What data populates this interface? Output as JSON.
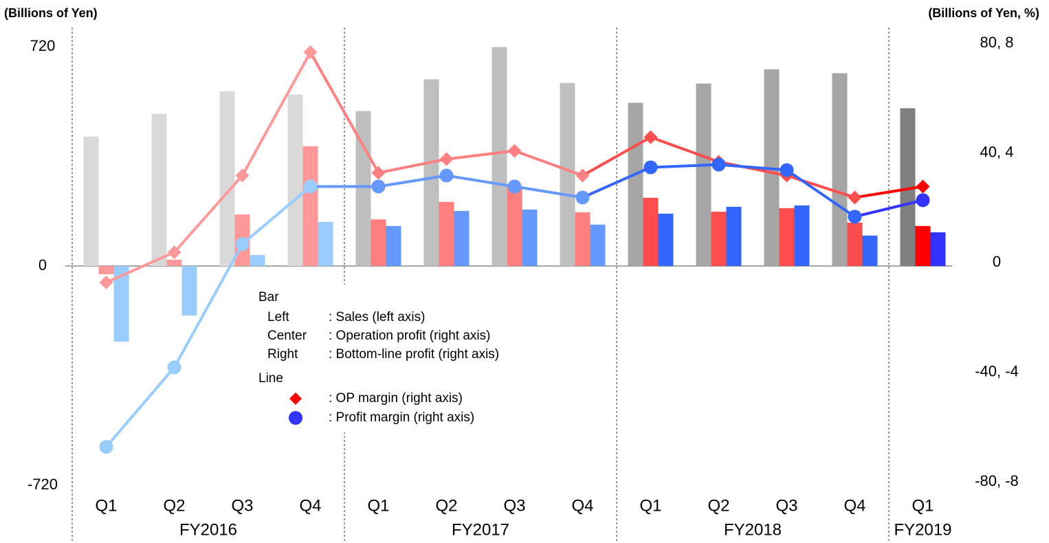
{
  "chart_data": {
    "type": "combo",
    "y_axis_label": "(Billions of Yen)",
    "y2_axis_label": "(Billions of Yen, %)",
    "groups": [
      {
        "name": "FY2016",
        "quarters": [
          "Q1",
          "Q2",
          "Q3",
          "Q4"
        ]
      },
      {
        "name": "FY2017",
        "quarters": [
          "Q1",
          "Q2",
          "Q3",
          "Q4"
        ]
      },
      {
        "name": "FY2018",
        "quarters": [
          "Q1",
          "Q2",
          "Q3",
          "Q4"
        ]
      },
      {
        "name": "FY2019",
        "quarters": [
          "Q1"
        ]
      }
    ],
    "ylim": [
      -720,
      720
    ],
    "yticks": [
      720,
      0,
      -720
    ],
    "y2lim": [
      -80,
      80
    ],
    "y2ticks": [
      {
        "value": 80,
        "label": "80, 8"
      },
      {
        "value": 40,
        "label": "40, 4"
      },
      0,
      {
        "value": -40,
        "label": "-40, -4"
      },
      {
        "value": -80,
        "label": "-80, -8"
      }
    ],
    "y3lim": [
      -8,
      8
    ],
    "legend_bar_title": "Bar",
    "legend_line_title": "Line",
    "series": [
      {
        "name": ": Sales (left axis)",
        "legend_position": "Left",
        "kind": "bar",
        "axis": "y",
        "colors": [
          "#d9d9d9",
          "#bfbfbf",
          "#a6a6a6",
          "#7f7f7f"
        ],
        "values": [
          425,
          500,
          574,
          563,
          509,
          613,
          719,
          601,
          536,
          599,
          646,
          633,
          518
        ]
      },
      {
        "name": ": Operation profit (right axis)",
        "legend_position": "Center",
        "kind": "bar",
        "axis": "y2",
        "colors": [
          "#ff9999",
          "#ff7f7f",
          "#ff4d4d",
          "#ff0000"
        ],
        "values": [
          -3,
          2.3,
          18.8,
          43.7,
          17,
          23.4,
          29.1,
          19.6,
          24.9,
          19.8,
          21.1,
          15.8,
          14.6
        ]
      },
      {
        "name": ": Bottom-line profit (right axis)",
        "legend_position": "Right",
        "kind": "bar",
        "axis": "y2",
        "colors": [
          "#99ccff",
          "#6699ff",
          "#3366ff",
          "#3333ff"
        ],
        "values": [
          -27.6,
          -18.1,
          4,
          16.1,
          14.6,
          20.1,
          20.6,
          15.1,
          19.1,
          21.6,
          22.1,
          11.1,
          12.3
        ]
      },
      {
        "name": ": OP margin (right axis)",
        "kind": "line",
        "marker": "diamond",
        "axis": "y3",
        "colors": [
          "#ff9999",
          "#ff8080",
          "#ff4d4d",
          "#ff0000"
        ],
        "values": [
          -0.6,
          0.5,
          3.3,
          7.8,
          3.4,
          3.9,
          4.2,
          3.3,
          4.7,
          3.8,
          3.3,
          2.5,
          2.9
        ]
      },
      {
        "name": ": Profit margin (right axis)",
        "kind": "line",
        "marker": "circle",
        "axis": "y3",
        "colors": [
          "#99ccff",
          "#6699ff",
          "#3366ff",
          "#3333ff"
        ],
        "values": [
          -6.6,
          -3.7,
          0.8,
          2.9,
          2.9,
          3.3,
          2.9,
          2.5,
          3.6,
          3.7,
          3.5,
          1.8,
          2.4
        ]
      }
    ]
  }
}
